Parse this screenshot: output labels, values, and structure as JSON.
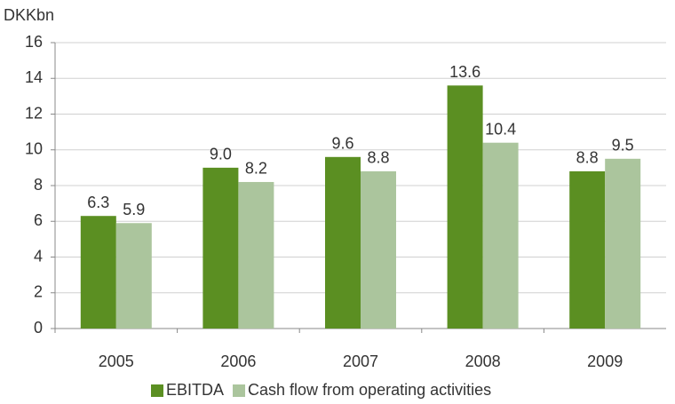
{
  "chart_data": {
    "type": "bar",
    "ylabel": "DKKbn",
    "categories": [
      "2005",
      "2006",
      "2007",
      "2008",
      "2009"
    ],
    "series": [
      {
        "name": "EBITDA",
        "color": "#5b8f22",
        "values": [
          6.3,
          9.0,
          9.6,
          13.6,
          8.8
        ],
        "value_labels": [
          "6.3",
          "9.0",
          "9.6",
          "13.6",
          "8.8"
        ]
      },
      {
        "name": "Cash flow from operating activities",
        "color": "#abc59d",
        "values": [
          5.9,
          8.2,
          8.8,
          10.4,
          9.5
        ],
        "value_labels": [
          "5.9",
          "8.2",
          "8.8",
          "10.4",
          "9.5"
        ]
      }
    ],
    "ylim": [
      0,
      16
    ],
    "yticks": [
      0,
      2,
      4,
      6,
      8,
      10,
      12,
      14,
      16
    ],
    "grid": true,
    "legend": "bottom"
  }
}
